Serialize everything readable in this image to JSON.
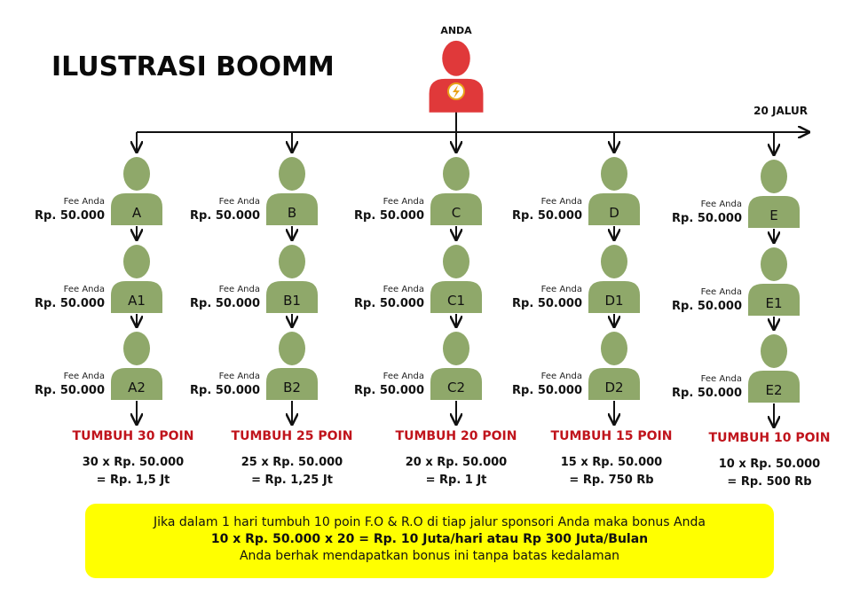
{
  "title": "ILUSTRASI BOOMM",
  "top_node": {
    "label": "ANDA",
    "icon": "lightning-icon",
    "color": "#e0393a"
  },
  "branch_label": "20 JALUR",
  "fee_caption": "Fee Anda",
  "fee_amount": "Rp. 50.000",
  "colors": {
    "member": "#8fa86a",
    "top": "#e0393a",
    "grow_text": "#c0141c",
    "note_bg": "#ffff00"
  },
  "columns": [
    {
      "nodes": [
        "A",
        "A1",
        "A2"
      ],
      "grow": "TUMBUH 30 POIN",
      "calc1": "30 x Rp. 50.000",
      "calc2": "= Rp. 1,5 Jt"
    },
    {
      "nodes": [
        "B",
        "B1",
        "B2"
      ],
      "grow": "TUMBUH 25 POIN",
      "calc1": "25 x Rp. 50.000",
      "calc2": "= Rp. 1,25 Jt"
    },
    {
      "nodes": [
        "C",
        "C1",
        "C2"
      ],
      "grow": "TUMBUH 20 POIN",
      "calc1": "20 x Rp. 50.000",
      "calc2": "= Rp. 1 Jt"
    },
    {
      "nodes": [
        "D",
        "D1",
        "D2"
      ],
      "grow": "TUMBUH 15 POIN",
      "calc1": "15 x Rp. 50.000",
      "calc2": "= Rp. 750 Rb"
    },
    {
      "nodes": [
        "E",
        "E1",
        "E2"
      ],
      "grow": "TUMBUH 10 POIN",
      "calc1": "10 x Rp. 50.000",
      "calc2": "= Rp. 500 Rb"
    }
  ],
  "note": {
    "line1": "Jika dalam 1 hari tumbuh 10 poin F.O & R.O di tiap jalur sponsori Anda maka bonus Anda",
    "line2": "10 x Rp. 50.000 x 20 = Rp. 10 Juta/hari atau Rp 300 Juta/Bulan",
    "line3": "Anda berhak mendapatkan bonus ini tanpa batas kedalaman"
  }
}
